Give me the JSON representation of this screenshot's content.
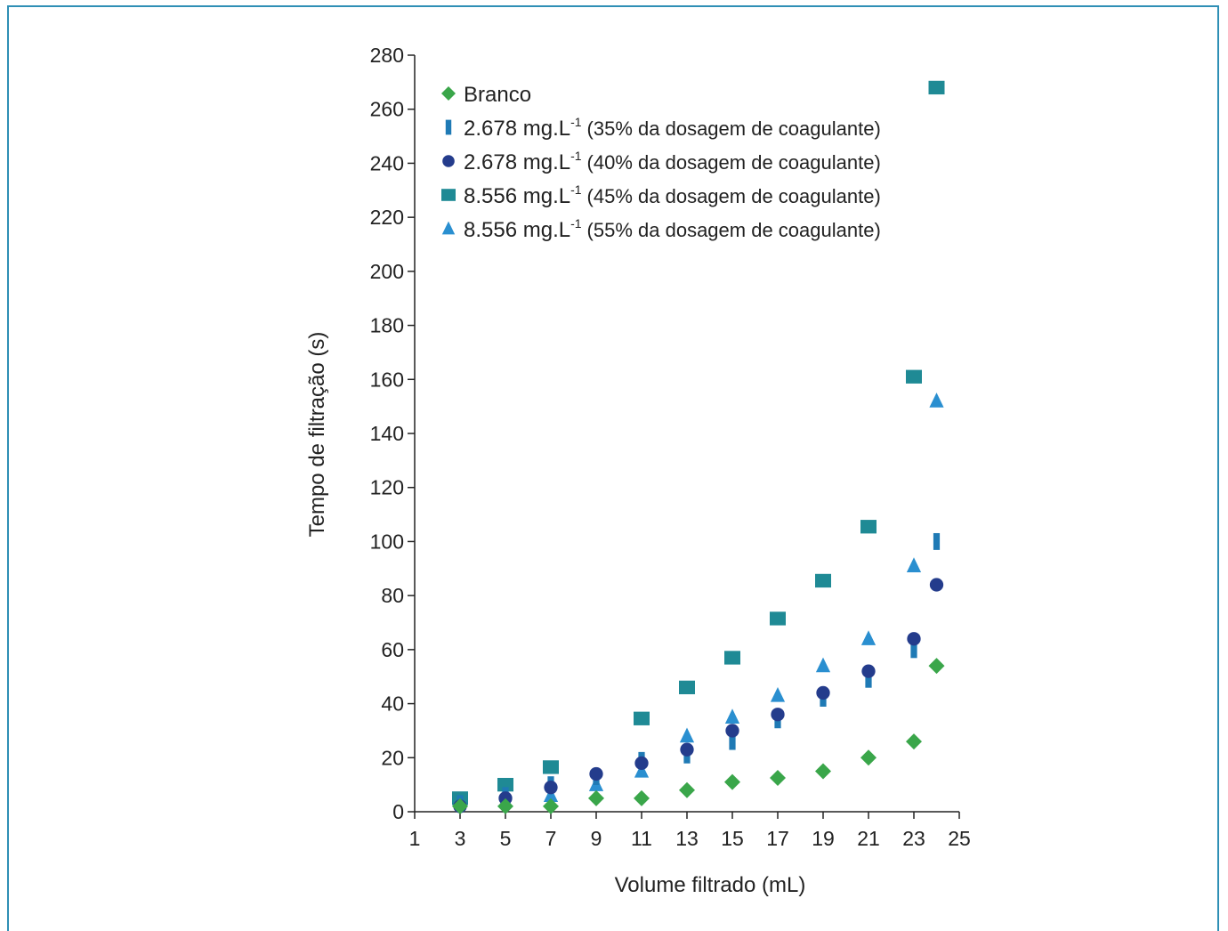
{
  "chart_data": {
    "type": "scatter",
    "xlabel": "Volume filtrado (mL)",
    "ylabel": "Tempo de filtração (s)",
    "xlim": [
      1,
      25
    ],
    "ylim": [
      0,
      280
    ],
    "x_ticks": [
      "1",
      "3",
      "5",
      "7",
      "9",
      "11",
      "13",
      "15",
      "17",
      "19",
      "21",
      "23",
      "25"
    ],
    "y_ticks": [
      "0",
      "20",
      "40",
      "60",
      "80",
      "100",
      "120",
      "140",
      "160",
      "180",
      "200",
      "220",
      "240",
      "260",
      "280"
    ],
    "grid": false,
    "legend_position": "top-left",
    "series": [
      {
        "name": "Branco",
        "marker": "diamond",
        "color": "#3aa64a",
        "x": [
          3,
          5,
          7,
          9,
          11,
          13,
          15,
          17,
          19,
          21,
          23,
          24
        ],
        "y": [
          2,
          2,
          2,
          5,
          5,
          8,
          11,
          12.5,
          15,
          20,
          26,
          54
        ]
      },
      {
        "name": "2.678 mg.L-1 (35% da dosagem de coagulante)",
        "legend_main": "2.678 mg.L",
        "legend_sup": "-1",
        "legend_note": "(35% da dosagem de coagulante)",
        "marker": "bar",
        "color": "#1f7ab5",
        "x": [
          3,
          5,
          7,
          9,
          11,
          13,
          15,
          17,
          19,
          21,
          23,
          24
        ],
        "y": [
          3,
          6,
          10,
          13,
          19,
          21,
          26,
          34,
          42,
          49,
          60,
          100
        ]
      },
      {
        "name": "2.678 mg.L-1 (40% da dosagem de coagulante)",
        "legend_main": "2.678 mg.L",
        "legend_sup": "-1",
        "legend_note": "(40% da dosagem de coagulante)",
        "marker": "circle",
        "color": "#243c8c",
        "x": [
          3,
          5,
          7,
          9,
          11,
          13,
          15,
          17,
          19,
          21,
          23,
          24
        ],
        "y": [
          2,
          5,
          9,
          14,
          18,
          23,
          30,
          36,
          44,
          52,
          64,
          84
        ]
      },
      {
        "name": "8.556 mg.L-1 (45% da dosagem de coagulante)",
        "legend_main": "8.556 mg.L",
        "legend_sup": "-1",
        "legend_note": "(45% da dosagem de coagulante)",
        "marker": "square",
        "color": "#1f8a95",
        "x": [
          3,
          5,
          7,
          11,
          13,
          15,
          17,
          19,
          21,
          23,
          24
        ],
        "y": [
          5,
          10,
          16.5,
          34.5,
          46,
          57,
          71.5,
          85.5,
          105.5,
          161,
          268
        ]
      },
      {
        "name": "8.556 mg.L-1 (55% da dosagem de coagulante)",
        "legend_main": "8.556 mg.L",
        "legend_sup": "-1",
        "legend_note": "(55% da dosagem de coagulante)",
        "marker": "triangle",
        "color": "#2a8fd0",
        "x": [
          5,
          7,
          9,
          11,
          13,
          15,
          17,
          19,
          21,
          23,
          24
        ],
        "y": [
          4,
          6,
          10,
          15,
          28,
          35,
          43,
          54,
          64,
          91,
          152
        ]
      }
    ]
  }
}
